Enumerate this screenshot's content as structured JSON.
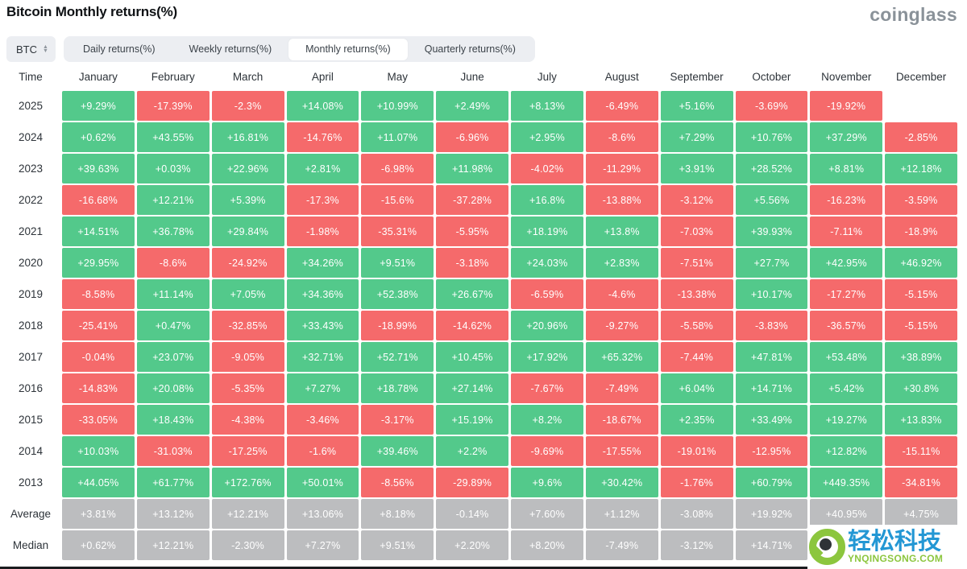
{
  "page": {
    "title": "Bitcoin Monthly returns(%)",
    "brand": "coinglass"
  },
  "controls": {
    "symbol_select": {
      "value": "BTC"
    },
    "tabs": [
      {
        "label": "Daily returns(%)",
        "active": false
      },
      {
        "label": "Weekly returns(%)",
        "active": false
      },
      {
        "label": "Monthly returns(%)",
        "active": true
      },
      {
        "label": "Quarterly returns(%)",
        "active": false
      }
    ]
  },
  "colors": {
    "positive": "#53c98b",
    "negative": "#f56a6b",
    "neutral": "#bcbdbf"
  },
  "chart_data": {
    "type": "heatmap",
    "title": "Bitcoin Monthly returns(%)",
    "time_column_header": "Time",
    "columns": [
      "January",
      "February",
      "March",
      "April",
      "May",
      "June",
      "July",
      "August",
      "September",
      "October",
      "November",
      "December"
    ],
    "rows": [
      {
        "label": "2025",
        "neutral": false,
        "values": [
          "+9.29%",
          "-17.39%",
          "-2.3%",
          "+14.08%",
          "+10.99%",
          "+2.49%",
          "+8.13%",
          "-6.49%",
          "+5.16%",
          "-3.69%",
          "-19.92%",
          null
        ]
      },
      {
        "label": "2024",
        "neutral": false,
        "values": [
          "+0.62%",
          "+43.55%",
          "+16.81%",
          "-14.76%",
          "+11.07%",
          "-6.96%",
          "+2.95%",
          "-8.6%",
          "+7.29%",
          "+10.76%",
          "+37.29%",
          "-2.85%"
        ]
      },
      {
        "label": "2023",
        "neutral": false,
        "values": [
          "+39.63%",
          "+0.03%",
          "+22.96%",
          "+2.81%",
          "-6.98%",
          "+11.98%",
          "-4.02%",
          "-11.29%",
          "+3.91%",
          "+28.52%",
          "+8.81%",
          "+12.18%"
        ]
      },
      {
        "label": "2022",
        "neutral": false,
        "values": [
          "-16.68%",
          "+12.21%",
          "+5.39%",
          "-17.3%",
          "-15.6%",
          "-37.28%",
          "+16.8%",
          "-13.88%",
          "-3.12%",
          "+5.56%",
          "-16.23%",
          "-3.59%"
        ]
      },
      {
        "label": "2021",
        "neutral": false,
        "values": [
          "+14.51%",
          "+36.78%",
          "+29.84%",
          "-1.98%",
          "-35.31%",
          "-5.95%",
          "+18.19%",
          "+13.8%",
          "-7.03%",
          "+39.93%",
          "-7.11%",
          "-18.9%"
        ]
      },
      {
        "label": "2020",
        "neutral": false,
        "values": [
          "+29.95%",
          "-8.6%",
          "-24.92%",
          "+34.26%",
          "+9.51%",
          "-3.18%",
          "+24.03%",
          "+2.83%",
          "-7.51%",
          "+27.7%",
          "+42.95%",
          "+46.92%"
        ]
      },
      {
        "label": "2019",
        "neutral": false,
        "values": [
          "-8.58%",
          "+11.14%",
          "+7.05%",
          "+34.36%",
          "+52.38%",
          "+26.67%",
          "-6.59%",
          "-4.6%",
          "-13.38%",
          "+10.17%",
          "-17.27%",
          "-5.15%"
        ]
      },
      {
        "label": "2018",
        "neutral": false,
        "values": [
          "-25.41%",
          "+0.47%",
          "-32.85%",
          "+33.43%",
          "-18.99%",
          "-14.62%",
          "+20.96%",
          "-9.27%",
          "-5.58%",
          "-3.83%",
          "-36.57%",
          "-5.15%"
        ]
      },
      {
        "label": "2017",
        "neutral": false,
        "values": [
          "-0.04%",
          "+23.07%",
          "-9.05%",
          "+32.71%",
          "+52.71%",
          "+10.45%",
          "+17.92%",
          "+65.32%",
          "-7.44%",
          "+47.81%",
          "+53.48%",
          "+38.89%"
        ]
      },
      {
        "label": "2016",
        "neutral": false,
        "values": [
          "-14.83%",
          "+20.08%",
          "-5.35%",
          "+7.27%",
          "+18.78%",
          "+27.14%",
          "-7.67%",
          "-7.49%",
          "+6.04%",
          "+14.71%",
          "+5.42%",
          "+30.8%"
        ]
      },
      {
        "label": "2015",
        "neutral": false,
        "values": [
          "-33.05%",
          "+18.43%",
          "-4.38%",
          "-3.46%",
          "-3.17%",
          "+15.19%",
          "+8.2%",
          "-18.67%",
          "+2.35%",
          "+33.49%",
          "+19.27%",
          "+13.83%"
        ]
      },
      {
        "label": "2014",
        "neutral": false,
        "values": [
          "+10.03%",
          "-31.03%",
          "-17.25%",
          "-1.6%",
          "+39.46%",
          "+2.2%",
          "-9.69%",
          "-17.55%",
          "-19.01%",
          "-12.95%",
          "+12.82%",
          "-15.11%"
        ]
      },
      {
        "label": "2013",
        "neutral": false,
        "values": [
          "+44.05%",
          "+61.77%",
          "+172.76%",
          "+50.01%",
          "-8.56%",
          "-29.89%",
          "+9.6%",
          "+30.42%",
          "-1.76%",
          "+60.79%",
          "+449.35%",
          "-34.81%"
        ]
      },
      {
        "label": "Average",
        "neutral": true,
        "values": [
          "+3.81%",
          "+13.12%",
          "+12.21%",
          "+13.06%",
          "+8.18%",
          "-0.14%",
          "+7.60%",
          "+1.12%",
          "-3.08%",
          "+19.92%",
          "+40.95%",
          "+4.75%"
        ]
      },
      {
        "label": "Median",
        "neutral": true,
        "values": [
          "+0.62%",
          "+12.21%",
          "-2.30%",
          "+7.27%",
          "+9.51%",
          "+2.20%",
          "+8.20%",
          "-7.49%",
          "-3.12%",
          "+14.71%",
          "",
          ""
        ]
      }
    ]
  },
  "watermark": {
    "cn": "轻松科技",
    "en": "YNQINGSONG.COM"
  }
}
